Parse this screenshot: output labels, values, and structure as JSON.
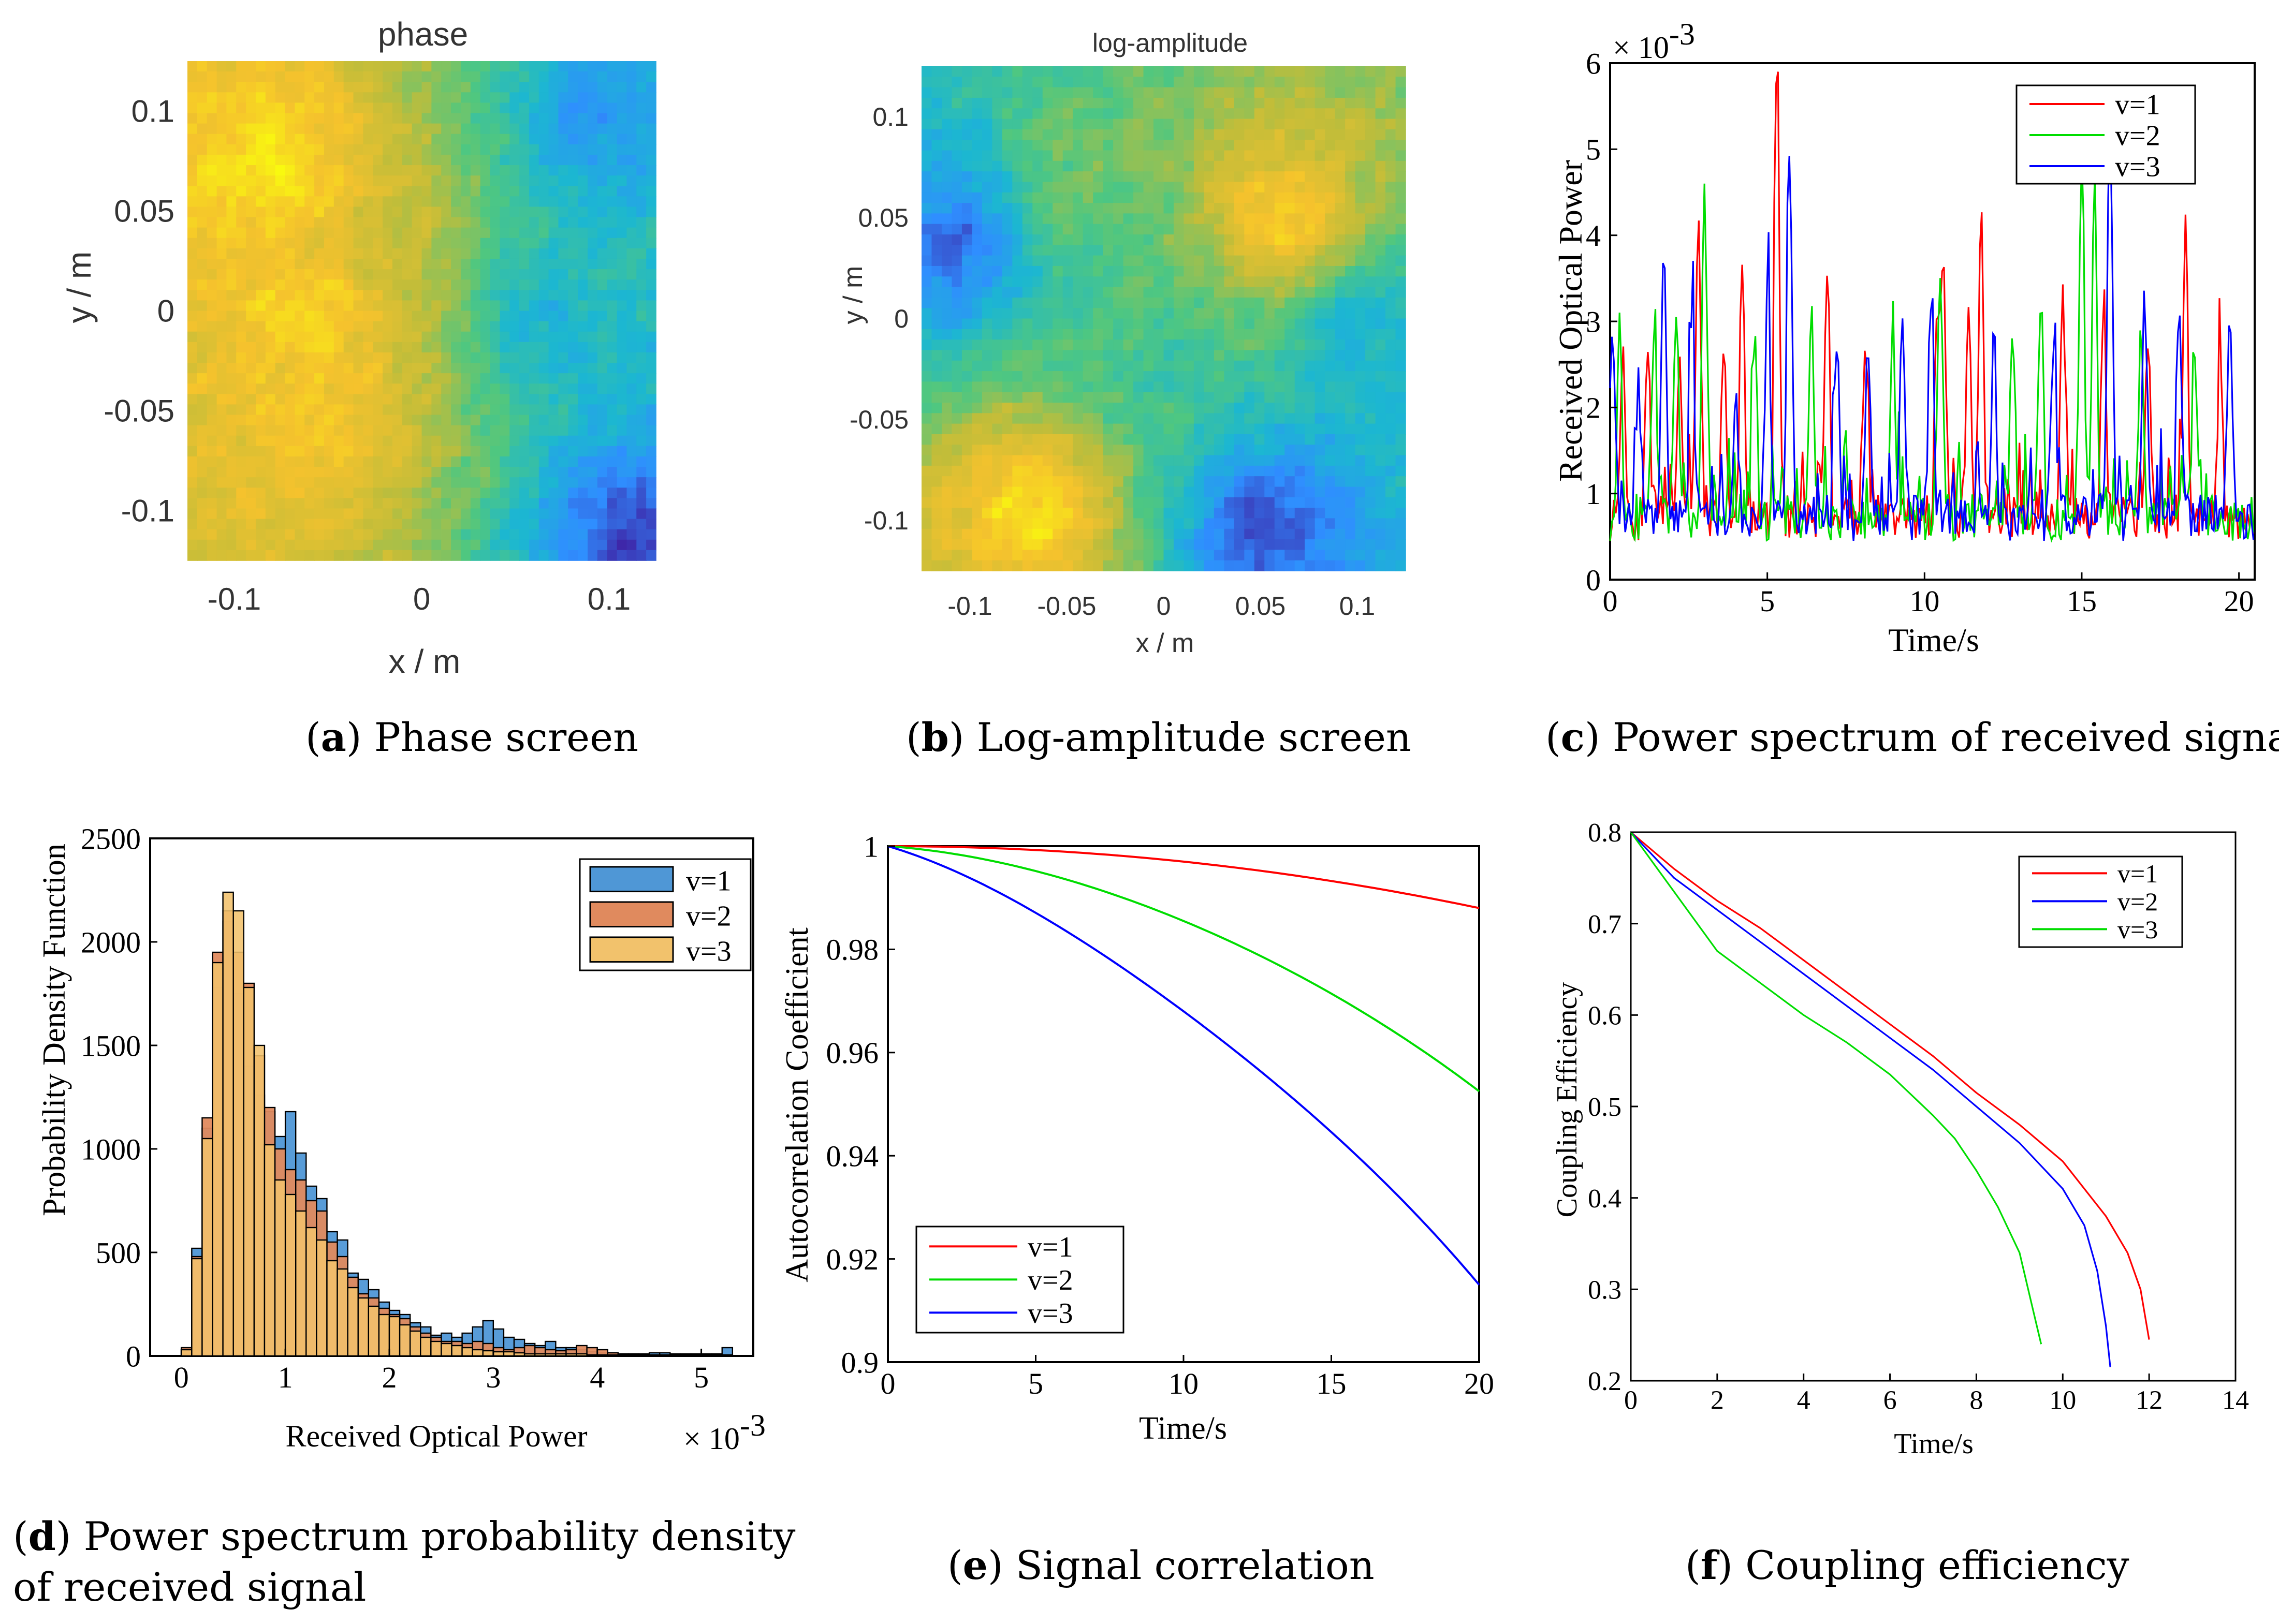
{
  "captions": {
    "a": {
      "letter": "a",
      "text": "Phase screen"
    },
    "b": {
      "letter": "b",
      "text": "Log-amplitude screen"
    },
    "c": {
      "letter": "c",
      "text": "Power spectrum of received signal"
    },
    "d": {
      "letter": "d",
      "text_line1": "Power spectrum probability density",
      "text_line2": "of received signal"
    },
    "e": {
      "letter": "e",
      "text": "Signal correlation"
    },
    "f": {
      "letter": "f",
      "text": "Coupling efficiency"
    }
  },
  "chart_data": [
    {
      "id": "a",
      "type": "heatmap",
      "title": "phase",
      "xlabel": "x / m",
      "ylabel": "y / m",
      "xlim": [
        -0.125,
        0.125
      ],
      "ylim": [
        -0.125,
        0.125
      ],
      "xticks": [
        "-0.1",
        "0",
        "0.1"
      ],
      "yticks": [
        "0.1",
        "0.05",
        "0",
        "-0.05",
        "-0.1"
      ],
      "colormap": [
        "#3e26a8",
        "#2f8eff",
        "#1cb7d1",
        "#4fc780",
        "#c0bd3a",
        "#f5c22d",
        "#f9fb0e"
      ],
      "blobs": [
        {
          "x": -0.08,
          "y": 0.075,
          "v": 0.95
        },
        {
          "x": -0.06,
          "y": 0.0,
          "v": 0.9
        },
        {
          "x": -0.055,
          "y": -0.055,
          "v": 0.85
        },
        {
          "x": -0.02,
          "y": 0.03,
          "v": 0.7
        },
        {
          "x": 0.06,
          "y": 0.0,
          "v": 0.3
        },
        {
          "x": 0.09,
          "y": 0.1,
          "v": 0.2
        },
        {
          "x": 0.11,
          "y": -0.11,
          "v": 0.05
        }
      ]
    },
    {
      "id": "b",
      "type": "heatmap",
      "title": "log-amplitude",
      "xlabel": "x / m",
      "ylabel": "y / m",
      "xlim": [
        -0.125,
        0.125
      ],
      "ylim": [
        -0.125,
        0.125
      ],
      "xticks": [
        "-0.1",
        "-0.05",
        "0",
        "0.05",
        "0.1"
      ],
      "yticks": [
        "0.1",
        "0.05",
        "0",
        "-0.05",
        "-0.1"
      ],
      "colormap": [
        "#3e26a8",
        "#2f8eff",
        "#1cb7d1",
        "#4fc780",
        "#c0bd3a",
        "#f5c22d",
        "#f9fb0e"
      ],
      "blobs": [
        {
          "x": -0.07,
          "y": -0.09,
          "v": 0.95
        },
        {
          "x": 0.06,
          "y": 0.05,
          "v": 0.92
        },
        {
          "x": -0.11,
          "y": 0.04,
          "v": 0.1
        },
        {
          "x": 0.05,
          "y": -0.1,
          "v": 0.03
        },
        {
          "x": -0.05,
          "y": 0.07,
          "v": 0.55
        },
        {
          "x": 0.1,
          "y": 0.0,
          "v": 0.3
        },
        {
          "x": 0.0,
          "y": -0.02,
          "v": 0.45
        }
      ]
    },
    {
      "id": "c",
      "type": "line",
      "xlabel": "Time/s",
      "ylabel": "Received Optical Power",
      "xlim": [
        0,
        20.5
      ],
      "ylim": [
        0,
        6
      ],
      "multiplier": "× 10",
      "multiplier_exponent": "-3",
      "xticks": [
        0,
        5,
        10,
        15,
        20
      ],
      "yticks": [
        0,
        1,
        2,
        3,
        4,
        5,
        6
      ],
      "series": [
        {
          "name": "v=1",
          "color": "#ff0000",
          "seed": 11,
          "peaks": [
            [
              0.4,
              2.0
            ],
            [
              1.2,
              1.8
            ],
            [
              2.2,
              1.9
            ],
            [
              2.8,
              3.3
            ],
            [
              3.6,
              2.0
            ],
            [
              4.2,
              2.9
            ],
            [
              5.3,
              5.4
            ],
            [
              6.9,
              2.6
            ],
            [
              8.1,
              2.0
            ],
            [
              10.4,
              2.2
            ],
            [
              10.6,
              2.8
            ],
            [
              11.4,
              2.2
            ],
            [
              11.8,
              3.4
            ],
            [
              14.4,
              2.8
            ],
            [
              15.7,
              2.5
            ],
            [
              17.1,
              2.0
            ],
            [
              18.3,
              3.4
            ],
            [
              19.4,
              1.9
            ]
          ]
        },
        {
          "name": "v=2",
          "color": "#00dd00",
          "seed": 23,
          "peaks": [
            [
              0.3,
              2.1
            ],
            [
              1.4,
              2.2
            ],
            [
              2.1,
              2.5
            ],
            [
              3.0,
              3.9
            ],
            [
              4.6,
              2.0
            ],
            [
              6.4,
              2.3
            ],
            [
              9.0,
              2.1
            ],
            [
              10.5,
              2.9
            ],
            [
              12.8,
              2.0
            ],
            [
              13.7,
              2.6
            ],
            [
              15.0,
              4.0
            ],
            [
              15.4,
              3.9
            ],
            [
              16.9,
              2.2
            ],
            [
              18.6,
              2.0
            ]
          ]
        },
        {
          "name": "v=3",
          "color": "#0000ff",
          "seed": 37,
          "peaks": [
            [
              0.1,
              2.1
            ],
            [
              0.9,
              1.6
            ],
            [
              1.7,
              3.2
            ],
            [
              2.6,
              2.2
            ],
            [
              4.0,
              1.5
            ],
            [
              5.0,
              2.6
            ],
            [
              5.7,
              4.3
            ],
            [
              7.2,
              2.1
            ],
            [
              8.2,
              1.9
            ],
            [
              9.3,
              2.2
            ],
            [
              10.2,
              2.6
            ],
            [
              12.2,
              2.1
            ],
            [
              14.1,
              2.1
            ],
            [
              15.9,
              4.8
            ],
            [
              17.0,
              2.5
            ],
            [
              18.1,
              2.3
            ],
            [
              19.7,
              2.4
            ]
          ]
        }
      ]
    },
    {
      "id": "d",
      "type": "bar",
      "xlabel": "Received Optical Power",
      "ylabel": "Probability Density Function",
      "xlim": [
        -0.3,
        5.5
      ],
      "ylim": [
        0,
        2500
      ],
      "multiplier": "× 10",
      "multiplier_exponent": "-3",
      "xticks": [
        0,
        1,
        2,
        3,
        4,
        5
      ],
      "yticks": [
        0,
        500,
        1000,
        1500,
        2000,
        2500
      ],
      "bin_start": 0.0,
      "bin_width": 0.1,
      "series": [
        {
          "name": "v=1",
          "color": "#4f97d6",
          "values": [
            30,
            520,
            1100,
            1780,
            2100,
            1750,
            1400,
            1260,
            1180,
            1060,
            1180,
            980,
            820,
            760,
            600,
            560,
            400,
            370,
            320,
            260,
            220,
            200,
            160,
            140,
            100,
            110,
            90,
            110,
            140,
            170,
            130,
            90,
            80,
            60,
            50,
            70,
            40,
            40,
            30,
            20,
            15,
            15,
            10,
            10,
            10,
            15,
            15,
            10,
            10,
            10,
            10,
            10,
            40
          ]
        },
        {
          "name": "v=2",
          "color": "#e08a5e",
          "values": [
            40,
            480,
            1150,
            1950,
            2150,
            1950,
            1800,
            1450,
            1200,
            1000,
            900,
            850,
            750,
            700,
            550,
            480,
            380,
            300,
            280,
            230,
            200,
            180,
            140,
            110,
            90,
            70,
            70,
            60,
            70,
            60,
            40,
            30,
            40,
            50,
            40,
            30,
            25,
            30,
            50,
            40,
            30,
            15,
            10,
            10,
            5,
            5,
            5,
            5,
            5,
            5,
            5,
            5,
            5
          ]
        },
        {
          "name": "v=3",
          "color": "#f2c26c",
          "values": [
            30,
            470,
            1050,
            1900,
            2240,
            2150,
            1780,
            1500,
            1020,
            850,
            780,
            700,
            620,
            560,
            460,
            420,
            330,
            280,
            240,
            200,
            190,
            150,
            120,
            90,
            70,
            60,
            50,
            40,
            30,
            25,
            20,
            20,
            15,
            10,
            10,
            10,
            10,
            10,
            10,
            5,
            5,
            5,
            5,
            5,
            5,
            5,
            5,
            5,
            5,
            5,
            5,
            5,
            5
          ]
        }
      ]
    },
    {
      "id": "e",
      "type": "line",
      "xlabel": "Time/s",
      "ylabel": "Autocorrelation Coefficient",
      "xlim": [
        0,
        20
      ],
      "ylim": [
        0.9,
        1.0
      ],
      "xticks": [
        0,
        5,
        10,
        15,
        20
      ],
      "yticks": [
        0.9,
        0.92,
        0.94,
        0.96,
        0.98,
        1
      ],
      "series": [
        {
          "name": "v=1",
          "color": "#ff0000",
          "x": [
            0,
            5,
            10,
            15,
            20
          ],
          "values": [
            1.0,
            0.9992,
            0.997,
            0.9932,
            0.988
          ]
        },
        {
          "name": "v=2",
          "color": "#00dd00",
          "x": [
            0,
            5,
            10,
            15,
            20
          ],
          "values": [
            1.0,
            0.996,
            0.9855,
            0.972,
            0.9525
          ]
        },
        {
          "name": "v=3",
          "color": "#0000ff",
          "x": [
            0,
            5,
            10,
            15,
            20
          ],
          "values": [
            1.0,
            0.991,
            0.968,
            0.944,
            0.915
          ]
        }
      ]
    },
    {
      "id": "f",
      "type": "line",
      "xlabel": "Time/s",
      "ylabel": "Coupling Efficiency",
      "xlim": [
        0,
        14
      ],
      "ylim": [
        0.2,
        0.8
      ],
      "xticks": [
        0,
        2,
        4,
        6,
        8,
        10,
        12,
        14
      ],
      "yticks": [
        0.2,
        0.3,
        0.4,
        0.5,
        0.6,
        0.7,
        0.8
      ],
      "series": [
        {
          "name": "v=1",
          "color": "#ff0000",
          "x": [
            0,
            1,
            2,
            3,
            4,
            5,
            6,
            7,
            8,
            9,
            10,
            11,
            11.5,
            11.8,
            12.0
          ],
          "values": [
            0.8,
            0.76,
            0.725,
            0.695,
            0.66,
            0.625,
            0.59,
            0.555,
            0.515,
            0.48,
            0.44,
            0.38,
            0.34,
            0.3,
            0.245
          ]
        },
        {
          "name": "v=2",
          "color": "#0000ff",
          "x": [
            0,
            1,
            2,
            3,
            4,
            5,
            6,
            7,
            8,
            9,
            10,
            10.5,
            10.8,
            11.0,
            11.1
          ],
          "values": [
            0.8,
            0.75,
            0.715,
            0.68,
            0.645,
            0.61,
            0.575,
            0.54,
            0.5,
            0.46,
            0.41,
            0.37,
            0.32,
            0.26,
            0.215
          ]
        },
        {
          "name": "v=3",
          "color": "#00dd00",
          "x": [
            0,
            1,
            2,
            3,
            4,
            5,
            6,
            7,
            7.5,
            8,
            8.5,
            9.0,
            9.2,
            9.4,
            9.5
          ],
          "values": [
            0.8,
            0.735,
            0.67,
            0.635,
            0.6,
            0.57,
            0.535,
            0.49,
            0.465,
            0.43,
            0.39,
            0.34,
            0.3,
            0.26,
            0.24
          ]
        }
      ]
    }
  ]
}
